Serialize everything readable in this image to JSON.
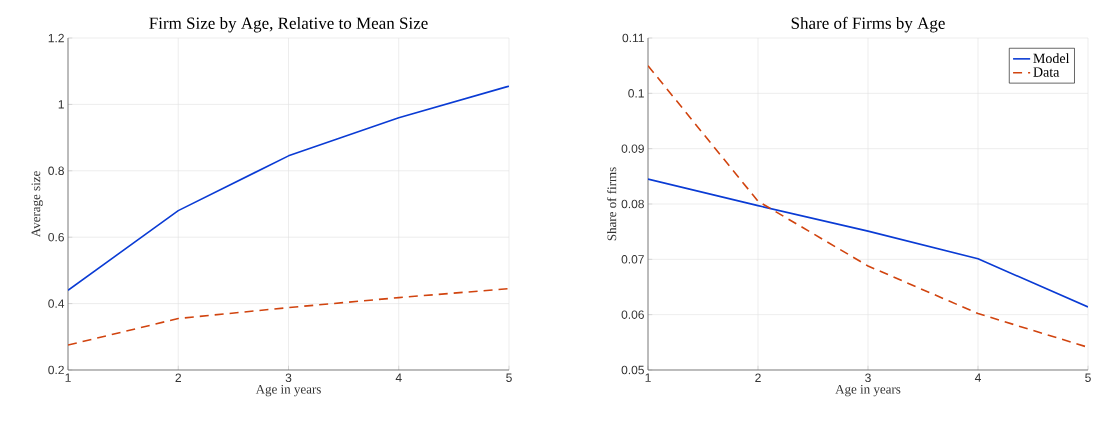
{
  "chart_data": [
    {
      "type": "line",
      "title": "Firm Size by Age, Relative to Mean Size",
      "xlabel": "Age in years",
      "ylabel": "Average size",
      "x": [
        1,
        2,
        3,
        4,
        5
      ],
      "series": [
        {
          "color": "#0a3bd4",
          "line_style": "solid",
          "values": [
            0.44,
            0.68,
            0.845,
            0.96,
            1.055
          ]
        },
        {
          "color": "#d1440f",
          "line_style": "dashed",
          "values": [
            0.275,
            0.355,
            0.388,
            0.418,
            0.445
          ]
        }
      ],
      "xlim": [
        1,
        5
      ],
      "xticks": [
        1,
        2,
        3,
        4,
        5
      ],
      "ylim": [
        0.2,
        1.2
      ],
      "yticks": [
        0.2,
        0.4,
        0.6,
        0.8,
        1,
        1.2
      ],
      "grid": true,
      "legend": false
    },
    {
      "type": "line",
      "title": "Share of Firms by Age",
      "xlabel": "Age in years",
      "ylabel": "Share of firms",
      "x": [
        1,
        2,
        3,
        4,
        5
      ],
      "series": [
        {
          "name": "Model",
          "color": "#0a3bd4",
          "line_style": "solid",
          "values": [
            0.0845,
            0.0797,
            0.0751,
            0.0701,
            0.0614
          ]
        },
        {
          "name": "Data",
          "color": "#d1440f",
          "line_style": "dashed",
          "values": [
            0.105,
            0.0805,
            0.0688,
            0.0602,
            0.0541
          ]
        }
      ],
      "xlim": [
        1,
        5
      ],
      "xticks": [
        1,
        2,
        3,
        4,
        5
      ],
      "ylim": [
        0.05,
        0.11
      ],
      "yticks": [
        0.05,
        0.06,
        0.07,
        0.08,
        0.09,
        0.1,
        0.11
      ],
      "grid": true,
      "legend": "top right"
    }
  ]
}
